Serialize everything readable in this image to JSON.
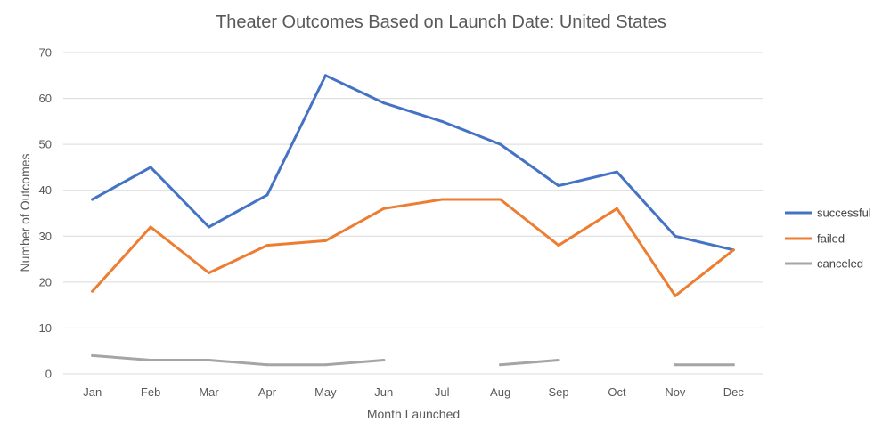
{
  "chart_data": {
    "type": "line",
    "title": "Theater Outcomes Based on Launch Date: United States",
    "xlabel": "Month Launched",
    "ylabel": "Number of Outcomes",
    "categories": [
      "Jan",
      "Feb",
      "Mar",
      "Apr",
      "May",
      "Jun",
      "Jul",
      "Aug",
      "Sep",
      "Oct",
      "Nov",
      "Dec"
    ],
    "ylim": [
      0,
      70
    ],
    "yticks": [
      0,
      10,
      20,
      30,
      40,
      50,
      60,
      70
    ],
    "grid": true,
    "legend_position": "right",
    "series": [
      {
        "name": "successful",
        "color": "#4472C4",
        "values": [
          38,
          45,
          32,
          39,
          65,
          59,
          55,
          50,
          41,
          44,
          30,
          27
        ]
      },
      {
        "name": "failed",
        "color": "#ED7D31",
        "values": [
          18,
          32,
          22,
          28,
          29,
          36,
          38,
          38,
          28,
          36,
          17,
          27
        ]
      },
      {
        "name": "canceled",
        "color": "#A5A5A5",
        "values": [
          4,
          3,
          3,
          2,
          2,
          3,
          null,
          2,
          3,
          null,
          2,
          2
        ]
      }
    ]
  }
}
